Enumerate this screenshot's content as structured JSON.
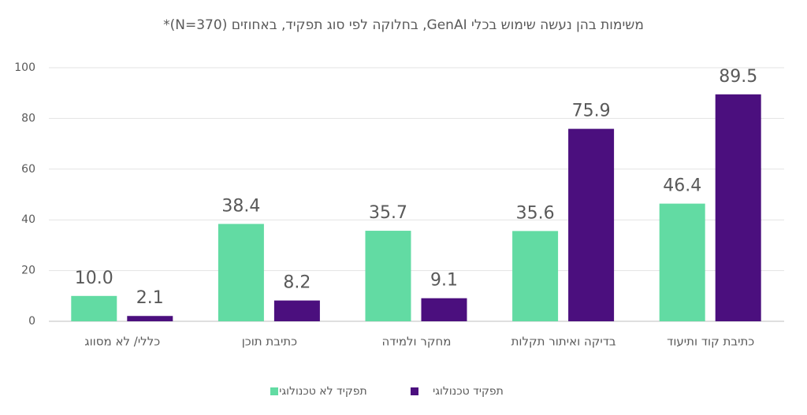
{
  "chart_data": {
    "type": "bar",
    "title": "משימות בהן נעשה שימוש בכלי GenAI, בחלוקה לפי סוג תפקיד, באחוזים (N=370)*",
    "categories": [
      "כללי/ לא מסווג",
      "כתיבת תוכן",
      "מחקר ולמידה",
      "בדיקה ואיתור תקלות",
      "כתיבת קוד ותיעוד"
    ],
    "series": [
      {
        "name": "תפקיד לא טכנולוגי",
        "color": "#62dba3",
        "values": [
          10.0,
          38.4,
          35.7,
          35.6,
          46.4
        ],
        "value_labels": [
          "10.0",
          "38.4",
          "35.7",
          "35.6",
          "46.4"
        ]
      },
      {
        "name": "תפקיד טכנולוגי",
        "color": "#4b0f7e",
        "values": [
          2.1,
          8.2,
          9.1,
          75.9,
          89.5
        ],
        "value_labels": [
          "2.1",
          "8.2",
          "9.1",
          "75.9",
          "89.5"
        ]
      }
    ],
    "ylim": [
      0,
      100
    ],
    "yticks": [
      0,
      20,
      40,
      60,
      80,
      100
    ],
    "grid": true,
    "legend": "bottom"
  }
}
